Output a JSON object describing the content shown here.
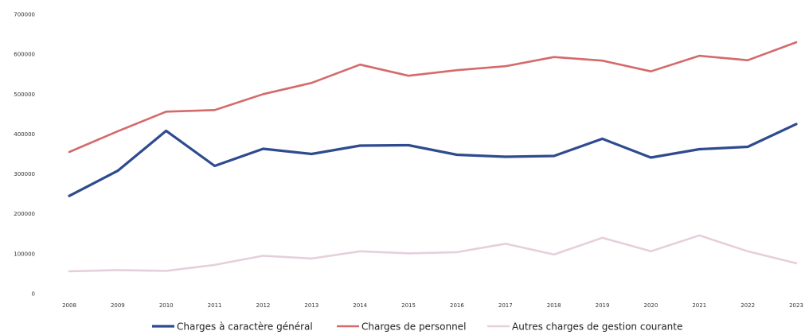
{
  "chart_data": {
    "type": "line",
    "categories": [
      "2008",
      "2009",
      "2010",
      "2011",
      "2012",
      "2013",
      "2014",
      "2015",
      "2016",
      "2017",
      "2018",
      "2019",
      "2020",
      "2021",
      "2022",
      "2023"
    ],
    "y_ticks": [
      "0",
      "100000",
      "200000",
      "300000",
      "400000",
      "500000",
      "600000",
      "700000"
    ],
    "ylim": [
      0,
      700000
    ],
    "grid": false,
    "legend": "bottom",
    "series": [
      {
        "name": "Charges à caractère général",
        "color": "#2f4b8f",
        "values": [
          245000,
          308000,
          408000,
          320000,
          363000,
          350000,
          371000,
          372000,
          348000,
          343000,
          345000,
          388000,
          341000,
          362000,
          368000,
          425000
        ]
      },
      {
        "name": "Charges de personnel",
        "color": "#d46a6a",
        "values": [
          355000,
          407000,
          456000,
          460000,
          500000,
          528000,
          574000,
          546000,
          560000,
          570000,
          593000,
          584000,
          557000,
          596000,
          585000,
          630000
        ]
      },
      {
        "name": "Autres charges de gestion courante",
        "color": "#e6cfdc",
        "values": [
          56000,
          59000,
          57000,
          72000,
          95000,
          88000,
          106000,
          101000,
          104000,
          125000,
          98000,
          140000,
          106000,
          146000,
          106000,
          76000
        ]
      }
    ]
  }
}
